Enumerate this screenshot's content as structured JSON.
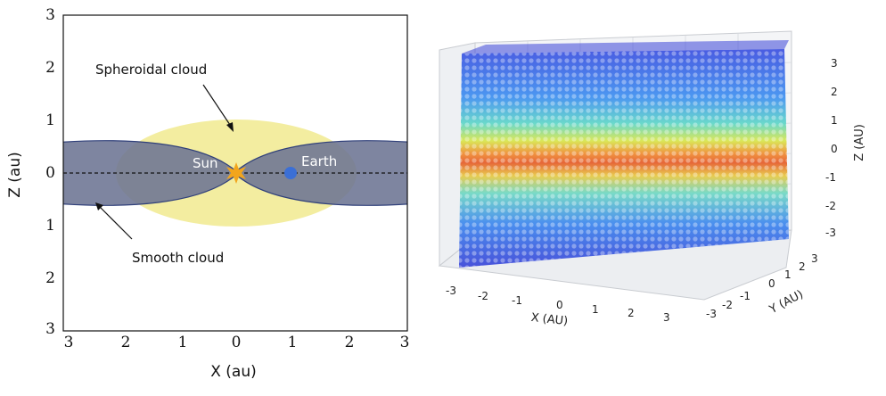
{
  "left_panel": {
    "x_ticks": [
      "3",
      "2",
      "1",
      "0",
      "1",
      "2",
      "3"
    ],
    "z_ticks": [
      "3",
      "2",
      "1",
      "0",
      "1",
      "2",
      "3"
    ],
    "xlabel": "X (au)",
    "ylabel": "Z (au)",
    "labels": {
      "spheroidal": "Spheroidal cloud",
      "smooth": "Smooth cloud",
      "sun": "Sun",
      "earth": "Earth"
    },
    "colors": {
      "spheroidal_fill": "#f3eda0",
      "smooth_fill": "#6c7493",
      "smooth_edge": "#30407a",
      "sun": "#f2a51c",
      "earth": "#3b6fd6"
    }
  },
  "right_panel": {
    "x_ticks": [
      "-3",
      "-2",
      "-1",
      "0",
      "1",
      "2",
      "3"
    ],
    "y_ticks": [
      "-3",
      "-2",
      "-1",
      "0",
      "1",
      "2",
      "3"
    ],
    "z_ticks": [
      "3",
      "2",
      "1",
      "0",
      "-1",
      "-2",
      "-3"
    ],
    "xlabel": "X (AU)",
    "ylabel": "Y (AU)",
    "zlabel": "Z (AU)",
    "colormap": "jet"
  }
}
